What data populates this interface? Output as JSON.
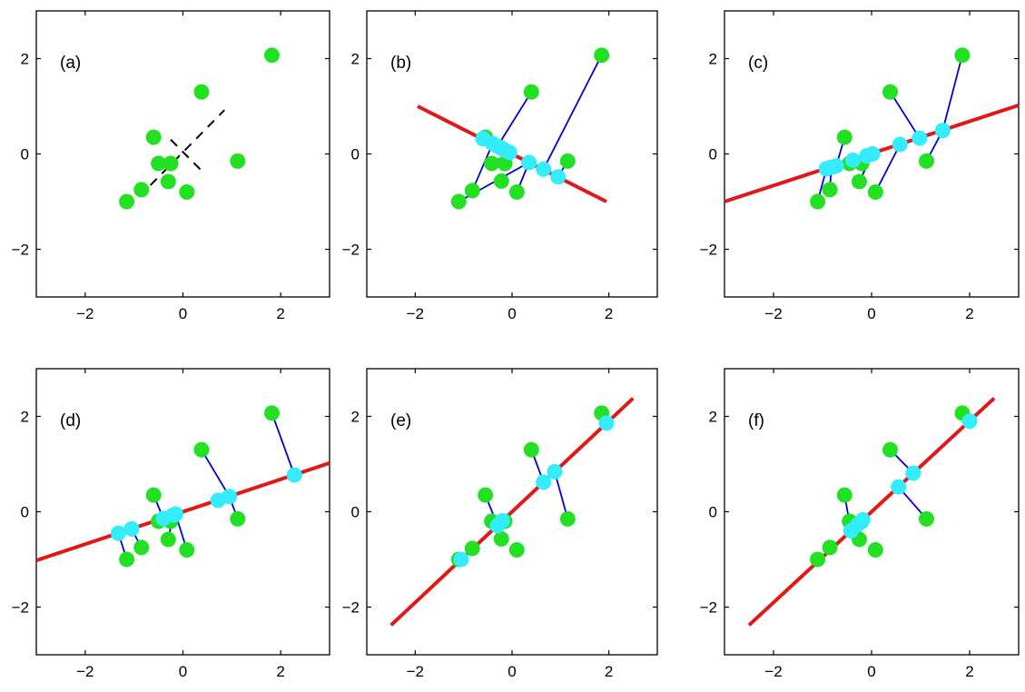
{
  "chart_data": [
    {
      "type": "scatter",
      "label": "(a)",
      "xlim": [
        -3,
        3
      ],
      "ylim": [
        -3,
        3
      ],
      "xticks": [
        -2,
        0,
        2
      ],
      "yticks": [
        -2,
        0,
        2
      ],
      "tick_labels": [
        "−2",
        "0",
        "2"
      ],
      "points": [
        [
          -1.15,
          -1.0
        ],
        [
          -0.85,
          -0.75
        ],
        [
          -0.6,
          0.35
        ],
        [
          -0.5,
          -0.2
        ],
        [
          -0.25,
          -0.2
        ],
        [
          -0.3,
          -0.58
        ],
        [
          0.08,
          -0.8
        ],
        [
          0.38,
          1.3
        ],
        [
          1.12,
          -0.15
        ],
        [
          1.82,
          2.07
        ]
      ],
      "dashed_axes": [
        [
          [
            -0.9,
            -0.9
          ],
          [
            0.85,
            0.92
          ]
        ],
        [
          [
            -0.25,
            0.3
          ],
          [
            0.38,
            -0.35
          ]
        ]
      ]
    },
    {
      "type": "scatter",
      "label": "(b)",
      "xlim": [
        -3,
        3
      ],
      "ylim": [
        -3,
        3
      ],
      "xticks": [
        -2,
        0,
        2
      ],
      "yticks": [
        -2,
        0,
        2
      ],
      "tick_labels": [
        "−2",
        "0",
        "2"
      ],
      "points": [
        [
          -1.1,
          -1.0
        ],
        [
          -0.82,
          -0.77
        ],
        [
          -0.55,
          0.35
        ],
        [
          -0.42,
          -0.2
        ],
        [
          -0.15,
          -0.2
        ],
        [
          -0.22,
          -0.57
        ],
        [
          0.1,
          -0.8
        ],
        [
          0.4,
          1.3
        ],
        [
          1.15,
          -0.15
        ],
        [
          1.85,
          2.07
        ]
      ],
      "line": [
        [
          -1.95,
          1.0
        ],
        [
          1.95,
          -1.0
        ]
      ],
      "projections": [
        [
          -0.6,
          0.32
        ],
        [
          -0.4,
          0.22
        ],
        [
          -0.3,
          0.16
        ],
        [
          -0.22,
          0.12
        ],
        [
          -0.15,
          0.08
        ],
        [
          -0.05,
          0.03
        ],
        [
          0.35,
          -0.18
        ],
        [
          0.65,
          -0.32
        ],
        [
          0.95,
          -0.48
        ]
      ],
      "links": [
        [
          0,
          6
        ],
        [
          3,
          5
        ],
        [
          4,
          4
        ],
        [
          7,
          2
        ],
        [
          9,
          7
        ],
        [
          8,
          8
        ],
        [
          2,
          0
        ],
        [
          1,
          1
        ],
        [
          6,
          6
        ]
      ]
    },
    {
      "type": "scatter",
      "label": "(c)",
      "xlim": [
        -3,
        3
      ],
      "ylim": [
        -3,
        3
      ],
      "xticks": [
        -2,
        0,
        2
      ],
      "yticks": [
        -2,
        0,
        2
      ],
      "tick_labels": [
        "−2",
        "0",
        "2"
      ],
      "points": [
        [
          -1.1,
          -1.0
        ],
        [
          -0.85,
          -0.75
        ],
        [
          -0.55,
          0.35
        ],
        [
          -0.45,
          -0.2
        ],
        [
          -0.2,
          -0.2
        ],
        [
          -0.25,
          -0.58
        ],
        [
          0.08,
          -0.8
        ],
        [
          0.38,
          1.3
        ],
        [
          1.12,
          -0.15
        ],
        [
          1.85,
          2.07
        ]
      ],
      "line": [
        [
          -3.0,
          -1.0
        ],
        [
          3.0,
          1.02
        ]
      ],
      "projections": [
        [
          -0.92,
          -0.31
        ],
        [
          -0.82,
          -0.28
        ],
        [
          -0.72,
          -0.25
        ],
        [
          -0.38,
          -0.13
        ],
        [
          -0.1,
          -0.04
        ],
        [
          0.02,
          0.0
        ],
        [
          0.58,
          0.2
        ],
        [
          0.98,
          0.33
        ],
        [
          1.45,
          0.49
        ]
      ],
      "links": [
        [
          0,
          0
        ],
        [
          1,
          1
        ],
        [
          2,
          2
        ],
        [
          3,
          3
        ],
        [
          4,
          4
        ],
        [
          5,
          5
        ],
        [
          6,
          6
        ],
        [
          7,
          7
        ],
        [
          8,
          8
        ],
        [
          9,
          8
        ]
      ]
    },
    {
      "type": "scatter",
      "label": "(d)",
      "xlim": [
        -3,
        3
      ],
      "ylim": [
        -3,
        3
      ],
      "xticks": [
        -2,
        0,
        2
      ],
      "yticks": [
        -2,
        0,
        2
      ],
      "tick_labels": [
        "−2",
        "0",
        "2"
      ],
      "points": [
        [
          -1.15,
          -1.0
        ],
        [
          -0.85,
          -0.75
        ],
        [
          -0.6,
          0.35
        ],
        [
          -0.5,
          -0.2
        ],
        [
          -0.25,
          -0.2
        ],
        [
          -0.3,
          -0.58
        ],
        [
          0.08,
          -0.8
        ],
        [
          0.38,
          1.3
        ],
        [
          1.12,
          -0.15
        ],
        [
          1.82,
          2.07
        ]
      ],
      "line": [
        [
          -3.0,
          -1.02
        ],
        [
          3.0,
          1.02
        ]
      ],
      "projections": [
        [
          -1.32,
          -0.45
        ],
        [
          -1.05,
          -0.36
        ],
        [
          -0.4,
          -0.14
        ],
        [
          -0.2,
          -0.07
        ],
        [
          -0.15,
          -0.05
        ],
        [
          0.72,
          0.24
        ],
        [
          0.95,
          0.32
        ],
        [
          2.28,
          0.77
        ]
      ],
      "links": [
        [
          0,
          0
        ],
        [
          1,
          1
        ],
        [
          2,
          2
        ],
        [
          3,
          3
        ],
        [
          4,
          4
        ],
        [
          5,
          3
        ],
        [
          6,
          4
        ],
        [
          7,
          6
        ],
        [
          8,
          6
        ],
        [
          9,
          7
        ]
      ]
    },
    {
      "type": "scatter",
      "label": "(e)",
      "xlim": [
        -3,
        3
      ],
      "ylim": [
        -3,
        3
      ],
      "xticks": [
        -2,
        0,
        2
      ],
      "yticks": [
        -2,
        0,
        2
      ],
      "tick_labels": [
        "−2",
        "0",
        "2"
      ],
      "points": [
        [
          -1.1,
          -1.0
        ],
        [
          -0.82,
          -0.77
        ],
        [
          -0.55,
          0.35
        ],
        [
          -0.42,
          -0.2
        ],
        [
          -0.15,
          -0.2
        ],
        [
          -0.22,
          -0.57
        ],
        [
          0.1,
          -0.8
        ],
        [
          0.4,
          1.3
        ],
        [
          1.15,
          -0.15
        ],
        [
          1.85,
          2.07
        ]
      ],
      "line": [
        [
          -2.5,
          -2.38
        ],
        [
          2.5,
          2.38
        ]
      ],
      "projections": [
        [
          -1.05,
          -1.0
        ],
        [
          -0.3,
          -0.29
        ],
        [
          -0.2,
          -0.19
        ],
        [
          0.65,
          0.62
        ],
        [
          0.88,
          0.84
        ],
        [
          1.95,
          1.86
        ]
      ],
      "links": [
        [
          2,
          1
        ],
        [
          7,
          3
        ],
        [
          8,
          4
        ],
        [
          9,
          5
        ]
      ]
    },
    {
      "type": "scatter",
      "label": "(f)",
      "xlim": [
        -3,
        3
      ],
      "ylim": [
        -3,
        3
      ],
      "xticks": [
        -2,
        0,
        2
      ],
      "yticks": [
        -2,
        0,
        2
      ],
      "tick_labels": [
        "−2",
        "0",
        "2"
      ],
      "points": [
        [
          -1.1,
          -1.0
        ],
        [
          -0.85,
          -0.75
        ],
        [
          -0.55,
          0.35
        ],
        [
          -0.45,
          -0.2
        ],
        [
          -0.2,
          -0.2
        ],
        [
          -0.25,
          -0.58
        ],
        [
          0.08,
          -0.8
        ],
        [
          0.38,
          1.3
        ],
        [
          1.12,
          -0.15
        ],
        [
          1.85,
          2.07
        ]
      ],
      "line": [
        [
          -2.5,
          -2.38
        ],
        [
          2.5,
          2.38
        ]
      ],
      "projections": [
        [
          -0.42,
          -0.4
        ],
        [
          -0.28,
          -0.27
        ],
        [
          -0.18,
          -0.17
        ],
        [
          0.55,
          0.52
        ],
        [
          0.85,
          0.81
        ],
        [
          2.0,
          1.9
        ]
      ],
      "links": [
        [
          2,
          0
        ],
        [
          4,
          1
        ],
        [
          7,
          4
        ],
        [
          8,
          3
        ],
        [
          9,
          5
        ]
      ]
    }
  ],
  "colors": {
    "point": "#22e022",
    "projection": "#33ecfc",
    "fit_line": "#e01818",
    "link": "#0000d0",
    "dashed": "#000000"
  }
}
